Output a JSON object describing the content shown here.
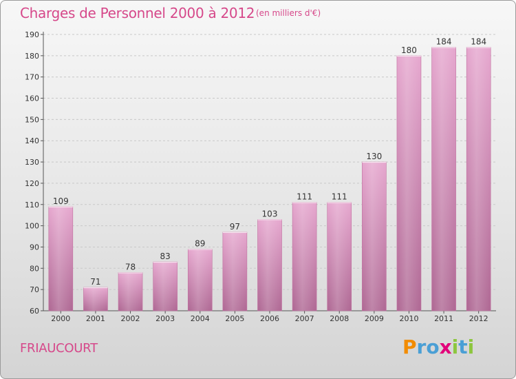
{
  "header": {
    "title": "Charges de Personnel 2000 à 2012",
    "subtitle": "(en milliers d'€)"
  },
  "footer": {
    "town": "FRIAUCOURT",
    "logo_letters": [
      "P",
      "r",
      "o",
      "x",
      "i",
      "t",
      "i"
    ],
    "logo_colors": [
      "#f28c00",
      "#4a9fd5",
      "#4a9fd5",
      "#e2007a",
      "#8dc63f",
      "#4a9fd5",
      "#8dc63f"
    ]
  },
  "chart_data": {
    "type": "bar",
    "title": "Charges de Personnel 2000 à 2012",
    "subtitle": "(en milliers d'€)",
    "categories": [
      "2000",
      "2001",
      "2002",
      "2003",
      "2004",
      "2005",
      "2006",
      "2007",
      "2008",
      "2009",
      "2010",
      "2011",
      "2012"
    ],
    "values": [
      109,
      71,
      78,
      83,
      89,
      97,
      103,
      111,
      111,
      130,
      180,
      184,
      184
    ],
    "ylim": [
      60,
      190
    ],
    "yticks": [
      60,
      70,
      80,
      90,
      100,
      110,
      120,
      130,
      140,
      150,
      160,
      170,
      180,
      190
    ],
    "grid": true,
    "bar_color": "#c97aa8"
  }
}
